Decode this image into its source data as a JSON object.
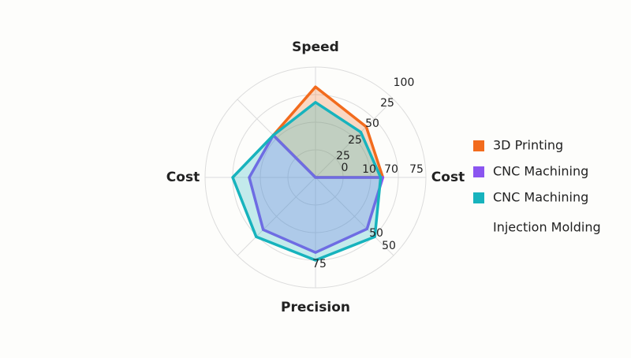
{
  "chart_data": {
    "type": "radar",
    "categories": [
      "Speed",
      null,
      "Cost",
      null,
      "Precision",
      null,
      "Cost",
      null
    ],
    "ylim": [
      0,
      100
    ],
    "yticks": [
      25,
      50,
      75,
      100
    ],
    "grid": true,
    "series": [
      {
        "name": "3D Printing",
        "color": "#f26b1d",
        "values": [
          82,
          65,
          61,
          0,
          0,
          0,
          0,
          54
        ]
      },
      {
        "name": "CNC Machining",
        "color": "#8b55f0",
        "values": [
          0,
          0,
          61,
          66,
          68,
          67,
          60,
          54
        ]
      },
      {
        "name": "CNC Machining",
        "color": "#17b3bd",
        "values": [
          68,
          58,
          59,
          76,
          75,
          76,
          75,
          54
        ]
      },
      {
        "name": "Injection Molding",
        "values": [
          null,
          null,
          null,
          null,
          null,
          null,
          null,
          null
        ]
      }
    ],
    "annotations": [
      "100",
      "25",
      "50",
      "25",
      "25",
      "0",
      "10",
      "70",
      "75",
      "50",
      "50",
      "75"
    ]
  }
}
